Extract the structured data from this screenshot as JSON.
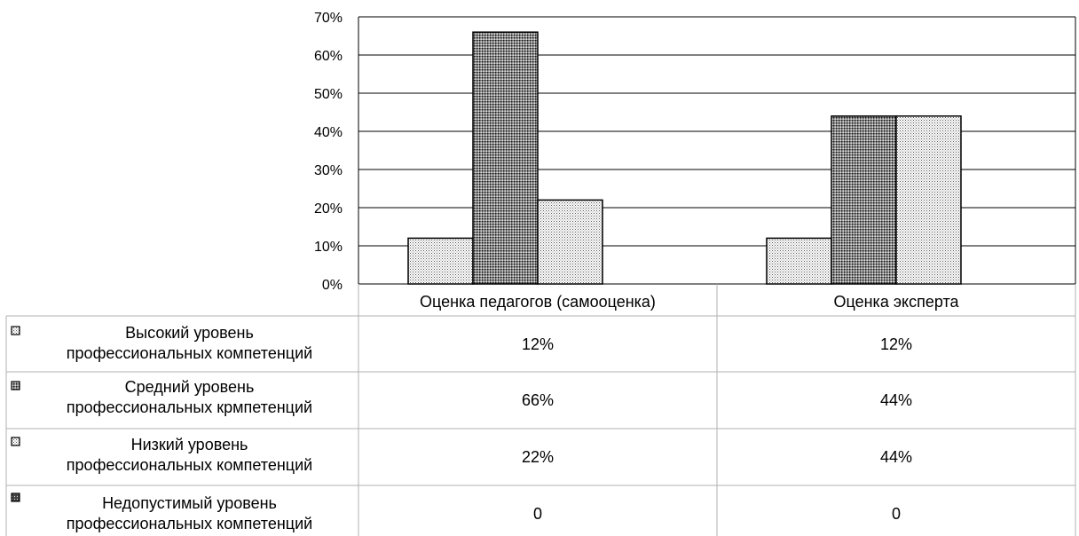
{
  "chart_data": {
    "type": "bar",
    "categories": [
      "Оценка педагогов (самооценка)",
      "Оценка эксперта"
    ],
    "series": [
      {
        "name": "Высокий уровень профессиональных компетенций",
        "values": [
          12,
          12
        ],
        "labels": [
          "12%",
          "12%"
        ],
        "pattern": "dots-light"
      },
      {
        "name": "Средний уровень профессиональных крмпетенций",
        "values": [
          66,
          44
        ],
        "labels": [
          "66%",
          "44%"
        ],
        "pattern": "dots-dense"
      },
      {
        "name": "Низкий уровень профессиональных компетенций",
        "values": [
          22,
          44
        ],
        "labels": [
          "22%",
          "44%"
        ],
        "pattern": "dots-light"
      },
      {
        "name": "Недопустимый уровень профессиональных компетенций",
        "values": [
          0,
          0
        ],
        "labels": [
          "0",
          "0"
        ],
        "pattern": "grid"
      }
    ],
    "legend_lines": [
      [
        "Высокий уровень",
        "профессиональных компетенций"
      ],
      [
        "Средний уровень",
        "профессиональных крмпетенций"
      ],
      [
        "Низкий уровень",
        "профессиональных компетенций"
      ],
      [
        "Недопустимый уровень",
        "профессиональных компетенций"
      ]
    ],
    "y_ticks": [
      "0%",
      "10%",
      "20%",
      "30%",
      "40%",
      "50%",
      "60%",
      "70%"
    ],
    "ylim": [
      0,
      70
    ],
    "grid": true,
    "legend_placement": "data-table"
  },
  "colors": {
    "bar_fill": "#ffffff",
    "pattern_dot": "#000000",
    "grid": "#000000",
    "table_border": "#b0b0b0"
  }
}
